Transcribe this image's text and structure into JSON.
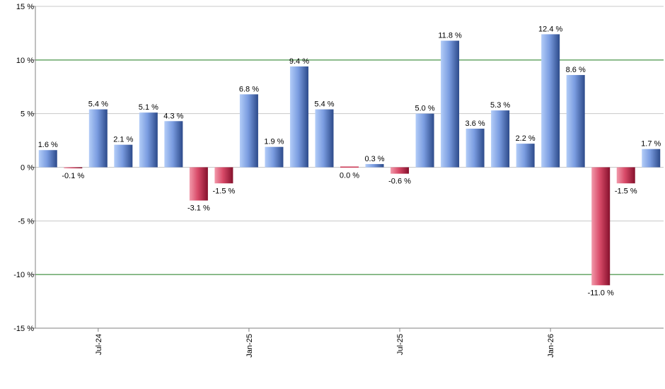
{
  "chart_data": {
    "type": "bar",
    "title": "",
    "xlabel": "",
    "ylabel": "",
    "ylim": [
      -15,
      15
    ],
    "yticks": [
      {
        "value": 15,
        "label": "15 %"
      },
      {
        "value": 10,
        "label": "10 %"
      },
      {
        "value": 5,
        "label": "5 %"
      },
      {
        "value": 0,
        "label": "0 %"
      },
      {
        "value": -5,
        "label": "-5 %"
      },
      {
        "value": -10,
        "label": "-10 %"
      },
      {
        "value": -15,
        "label": "-15 %"
      }
    ],
    "xticks": [
      {
        "index": 2,
        "label": "Jul-24"
      },
      {
        "index": 8,
        "label": "Jan-25"
      },
      {
        "index": 14,
        "label": "Jul-25"
      },
      {
        "index": 20,
        "label": "Jan-26"
      }
    ],
    "values": [
      1.6,
      -0.1,
      5.4,
      2.1,
      5.1,
      4.3,
      -3.1,
      -1.5,
      6.8,
      1.9,
      9.4,
      5.4,
      0.0,
      0.3,
      -0.6,
      5.0,
      11.8,
      3.6,
      5.3,
      2.2,
      12.4,
      8.6,
      -11.0,
      -1.5,
      1.7
    ],
    "labels": [
      "1.6 %",
      "-0.1 %",
      "5.4 %",
      "2.1 %",
      "5.1 %",
      "4.3 %",
      "-3.1 %",
      "-1.5 %",
      "6.8 %",
      "1.9 %",
      "9.4 %",
      "5.4 %",
      "0.0 %",
      "0.3 %",
      "-0.6 %",
      "5.0 %",
      "11.8 %",
      "3.6 %",
      "5.3 %",
      "2.2 %",
      "12.4 %",
      "8.6 %",
      "-11.0 %",
      "-1.5 %",
      "1.7 %"
    ],
    "grid": true,
    "highlight_lines": [
      10,
      -10
    ],
    "colors": {
      "positive_light": "#a9c4f5",
      "positive_dark": "#2f4f8f",
      "negative_light": "#f08aa0",
      "negative_dark": "#8a1030",
      "grid": "#c8c8c8",
      "highlight": "#1a7a1a",
      "axis": "#808080"
    }
  }
}
